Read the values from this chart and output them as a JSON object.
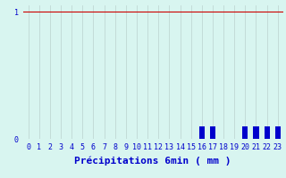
{
  "hours": [
    0,
    1,
    2,
    3,
    4,
    5,
    6,
    7,
    8,
    9,
    10,
    11,
    12,
    13,
    14,
    15,
    16,
    17,
    18,
    19,
    20,
    21,
    22,
    23
  ],
  "values": [
    0,
    0,
    0,
    0,
    0,
    0,
    0,
    0,
    0,
    0,
    0,
    0,
    0,
    0,
    0,
    0,
    0.1,
    0.1,
    0,
    0,
    0.1,
    0.1,
    0.1,
    0.1
  ],
  "ylim": [
    0,
    1.05
  ],
  "yticks": [
    0,
    1
  ],
  "yticklabels": [
    "0",
    "1"
  ],
  "bar_color": "#0000cc",
  "bg_color": "#d8f5f0",
  "grid_color": "#c0d8d4",
  "grid_color_y1": "#cc0000",
  "xlabel": "Précipitations 6min ( mm )",
  "xlabel_color": "#0000cc",
  "xlabel_fontsize": 8,
  "tick_color": "#0000cc",
  "tick_fontsize": 6,
  "bar_width": 0.5,
  "figwidth": 3.2,
  "figheight": 2.0,
  "dpi": 100
}
